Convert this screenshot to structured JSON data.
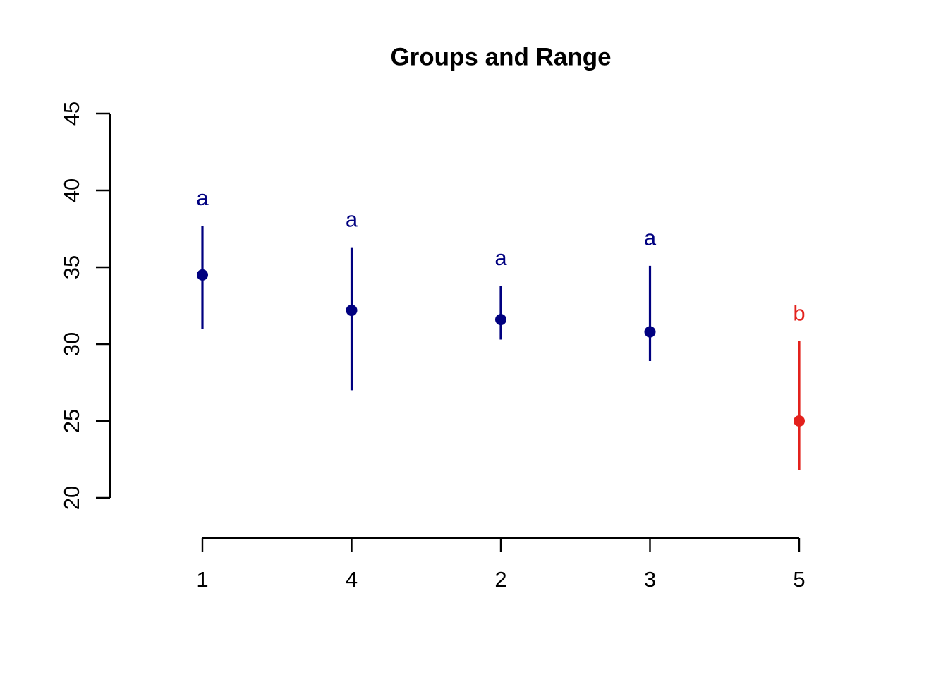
{
  "chart_data": {
    "type": "scatter",
    "subtype": "point-range",
    "title": "Groups and Range",
    "xlabel": "",
    "ylabel": "",
    "ylim": [
      20,
      45
    ],
    "yticks": [
      20,
      25,
      30,
      35,
      40,
      45
    ],
    "categories": [
      "1",
      "4",
      "2",
      "3",
      "5"
    ],
    "series": [
      {
        "name": "mid",
        "values": [
          34.5,
          32.2,
          31.6,
          30.8,
          25.0
        ]
      },
      {
        "name": "range_low",
        "values": [
          31.0,
          27.0,
          30.3,
          28.9,
          21.8
        ]
      },
      {
        "name": "range_high",
        "values": [
          37.7,
          36.3,
          33.8,
          35.1,
          30.2
        ]
      }
    ],
    "point_labels": [
      "a",
      "a",
      "a",
      "a",
      "b"
    ],
    "point_colors": [
      "#000080",
      "#000080",
      "#000080",
      "#000080",
      "#E3211C"
    ],
    "colors": {
      "group_a": "#000080",
      "group_b": "#E3211C",
      "axis": "#000000",
      "background": "#ffffff"
    },
    "legend": "none",
    "grid": false
  }
}
